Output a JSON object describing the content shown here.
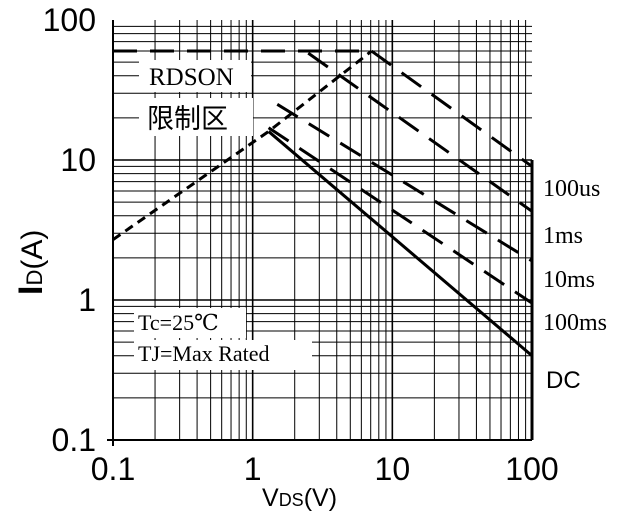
{
  "chart_data": {
    "type": "line",
    "xlabel_main": "V",
    "xlabel_sub": "DS",
    "xlabel_tail": "(V)",
    "ylabel_main": "I",
    "ylabel_sub": "D",
    "ylabel_tail": "(A)",
    "x_scale": "log",
    "y_scale": "log",
    "xlim": [
      0.1,
      100
    ],
    "ylim": [
      0.1,
      100
    ],
    "x_ticks": [
      {
        "v": 0.1,
        "label": "0.1"
      },
      {
        "v": 1,
        "label": "1"
      },
      {
        "v": 10,
        "label": "10"
      },
      {
        "v": 100,
        "label": "100"
      }
    ],
    "y_ticks": [
      {
        "v": 0.1,
        "label": "0.1"
      },
      {
        "v": 1,
        "label": "1"
      },
      {
        "v": 10,
        "label": "10"
      },
      {
        "v": 100,
        "label": "100"
      }
    ],
    "grid": true,
    "series": [
      {
        "id": "rdson",
        "style": "short-dash",
        "points": [
          [
            0.1,
            2.7
          ],
          [
            1.3,
            16
          ],
          [
            7.1,
            60
          ]
        ]
      },
      {
        "id": "current-limit",
        "style": "long-dash",
        "points": [
          [
            0.1,
            60
          ],
          [
            6.9,
            60
          ]
        ]
      },
      {
        "name": "100us",
        "style": "long-dash",
        "points": [
          [
            7.1,
            60
          ],
          [
            100,
            9
          ]
        ]
      },
      {
        "name": "1ms",
        "style": "long-dash",
        "points": [
          [
            2.5,
            58
          ],
          [
            100,
            4.3
          ]
        ]
      },
      {
        "name": "10ms",
        "style": "long-dash",
        "points": [
          [
            1.5,
            25
          ],
          [
            100,
            1.9
          ]
        ]
      },
      {
        "name": "100ms",
        "style": "long-dash",
        "points": [
          [
            1.3,
            17
          ],
          [
            100,
            0.95
          ]
        ]
      },
      {
        "name": "DC",
        "style": "solid",
        "points": [
          [
            1.3,
            16
          ],
          [
            100,
            0.4
          ]
        ]
      }
    ],
    "series_labels": [
      "100us",
      "1ms",
      "10ms",
      "100ms",
      "DC"
    ],
    "annotations": {
      "rdson_line1": "RDSON",
      "rdson_line2": "限制区",
      "cond_tc": "Tc=25℃",
      "cond_tj": "TJ=Max Rated"
    }
  }
}
